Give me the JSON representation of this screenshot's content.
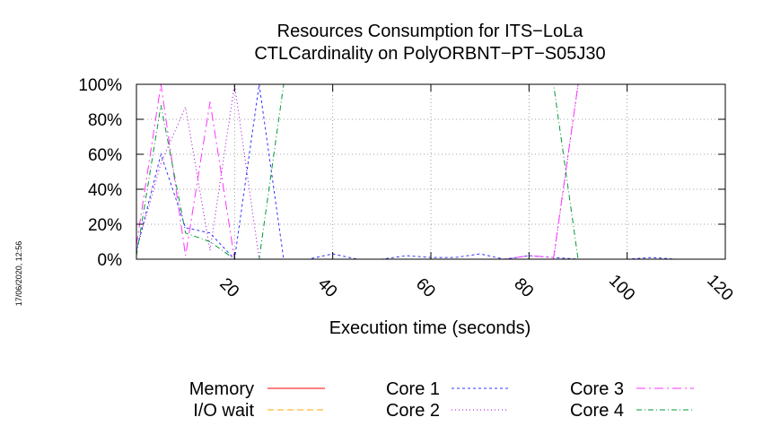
{
  "chart_data": {
    "type": "line",
    "title_lines": [
      "Resources Consumption for ITS−LoLa",
      "CTLCardinality on PolyORBNT−PT−S05J30"
    ],
    "xlabel": "Execution time (seconds)",
    "ylabel": "",
    "xlim": [
      0,
      120
    ],
    "ylim": [
      0,
      100
    ],
    "x_ticks": [
      20,
      40,
      60,
      80,
      100,
      120
    ],
    "x_tick_labels": [
      "20",
      "40",
      "60",
      "80",
      "100",
      "120"
    ],
    "y_ticks": [
      0,
      20,
      40,
      60,
      80,
      100
    ],
    "y_tick_labels": [
      "0%",
      "20%",
      "40%",
      "60%",
      "80%",
      "100%"
    ],
    "grid": true,
    "legend_placement": "bottom",
    "timestamp": "17/06/2020, 12:56",
    "series": [
      {
        "name": "Memory",
        "color": "#ff0000",
        "dash": "",
        "x": [],
        "y": []
      },
      {
        "name": "I/O wait",
        "color": "#ffa500",
        "dash": "",
        "x": [],
        "y": []
      },
      {
        "name": "Core 1",
        "color": "#3333ff",
        "x": [
          0,
          5,
          10,
          15,
          20,
          25,
          30,
          35,
          40,
          45,
          50,
          55,
          60,
          65,
          70,
          75,
          80,
          85,
          90,
          95,
          100,
          105,
          110
        ],
        "y": [
          5,
          60,
          18,
          15,
          0,
          100,
          0,
          0,
          3,
          0,
          0,
          2,
          1,
          1,
          3,
          0,
          2,
          1,
          0,
          0,
          0,
          1,
          0
        ]
      },
      {
        "name": "Core 2",
        "color": "#9900cc",
        "x": [
          0,
          5,
          10,
          15,
          20,
          25,
          30,
          35,
          40,
          45,
          50,
          55,
          60,
          65,
          70,
          75,
          80,
          85,
          90,
          95,
          100,
          105,
          110,
          115,
          120
        ],
        "y": [
          5,
          55,
          87,
          5,
          100,
          0,
          0,
          0,
          0,
          0,
          0,
          0,
          0,
          0,
          0,
          0,
          0,
          0,
          100,
          100,
          100,
          100,
          100,
          100,
          100
        ]
      },
      {
        "name": "Core 3",
        "color": "#ff33ff",
        "x": [
          0,
          5,
          10,
          15,
          20,
          25,
          30,
          35,
          40,
          45,
          50,
          55,
          60,
          65,
          70,
          75,
          80,
          85,
          90,
          95,
          100,
          105,
          110,
          115,
          120
        ],
        "y": [
          8,
          100,
          2,
          90,
          0,
          0,
          0,
          0,
          0,
          0,
          0,
          0,
          0,
          0,
          0,
          0,
          2,
          1,
          100,
          100,
          100,
          100,
          100,
          100,
          100
        ]
      },
      {
        "name": "Core 4",
        "color": "#009933",
        "x": [
          0,
          5,
          10,
          15,
          20,
          25,
          30,
          35,
          40,
          45,
          50,
          55,
          60,
          65,
          70,
          75,
          80,
          85,
          90,
          95,
          100,
          105,
          110
        ],
        "y": [
          2,
          88,
          15,
          10,
          0,
          0,
          100,
          100,
          100,
          100,
          100,
          100,
          100,
          100,
          100,
          100,
          100,
          100,
          0,
          0,
          0,
          0,
          0
        ]
      }
    ]
  }
}
